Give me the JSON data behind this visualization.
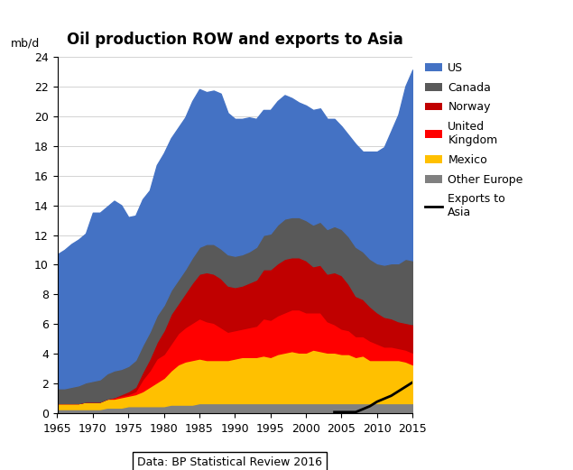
{
  "title": "Oil production ROW and exports to Asia",
  "ylabel": "mb/d",
  "source": "Data: BP Statistical Review 2016",
  "years": [
    1965,
    1966,
    1967,
    1968,
    1969,
    1970,
    1971,
    1972,
    1973,
    1974,
    1975,
    1976,
    1977,
    1978,
    1979,
    1980,
    1981,
    1982,
    1983,
    1984,
    1985,
    1986,
    1987,
    1988,
    1989,
    1990,
    1991,
    1992,
    1993,
    1994,
    1995,
    1996,
    1997,
    1998,
    1999,
    2000,
    2001,
    2002,
    2003,
    2004,
    2005,
    2006,
    2007,
    2008,
    2009,
    2010,
    2011,
    2012,
    2013,
    2014,
    2015
  ],
  "other_europe": [
    0.3,
    0.3,
    0.3,
    0.3,
    0.3,
    0.3,
    0.3,
    0.4,
    0.4,
    0.4,
    0.5,
    0.5,
    0.5,
    0.5,
    0.5,
    0.5,
    0.6,
    0.6,
    0.6,
    0.6,
    0.7,
    0.7,
    0.7,
    0.7,
    0.7,
    0.7,
    0.7,
    0.7,
    0.7,
    0.7,
    0.7,
    0.7,
    0.7,
    0.7,
    0.7,
    0.7,
    0.7,
    0.7,
    0.7,
    0.7,
    0.7,
    0.7,
    0.7,
    0.7,
    0.7,
    0.7,
    0.7,
    0.7,
    0.7,
    0.7,
    0.7
  ],
  "mexico": [
    0.4,
    0.4,
    0.4,
    0.4,
    0.5,
    0.5,
    0.5,
    0.6,
    0.6,
    0.7,
    0.7,
    0.8,
    1.0,
    1.3,
    1.6,
    1.9,
    2.3,
    2.7,
    2.9,
    3.0,
    3.0,
    2.9,
    2.9,
    2.9,
    2.9,
    3.0,
    3.1,
    3.1,
    3.1,
    3.2,
    3.1,
    3.3,
    3.4,
    3.5,
    3.4,
    3.4,
    3.6,
    3.5,
    3.4,
    3.4,
    3.3,
    3.3,
    3.1,
    3.2,
    2.9,
    2.9,
    2.9,
    2.9,
    2.9,
    2.8,
    2.6
  ],
  "uk": [
    0.0,
    0.0,
    0.0,
    0.0,
    0.0,
    0.0,
    0.0,
    0.0,
    0.1,
    0.1,
    0.1,
    0.2,
    0.8,
    1.1,
    1.6,
    1.6,
    1.8,
    2.1,
    2.3,
    2.5,
    2.7,
    2.6,
    2.5,
    2.2,
    1.9,
    1.9,
    1.9,
    2.0,
    2.1,
    2.5,
    2.5,
    2.6,
    2.7,
    2.8,
    2.9,
    2.7,
    2.5,
    2.6,
    2.1,
    1.9,
    1.7,
    1.6,
    1.4,
    1.3,
    1.3,
    1.1,
    0.9,
    0.9,
    0.8,
    0.8,
    0.8
  ],
  "norway": [
    0.0,
    0.0,
    0.0,
    0.0,
    0.0,
    0.0,
    0.0,
    0.0,
    0.0,
    0.1,
    0.2,
    0.3,
    0.5,
    0.8,
    1.1,
    1.6,
    2.0,
    2.0,
    2.3,
    2.7,
    3.0,
    3.3,
    3.3,
    3.3,
    3.1,
    2.9,
    2.9,
    3.0,
    3.1,
    3.3,
    3.4,
    3.5,
    3.6,
    3.5,
    3.5,
    3.5,
    3.1,
    3.2,
    3.2,
    3.5,
    3.6,
    3.1,
    2.7,
    2.5,
    2.3,
    2.1,
    2.0,
    1.9,
    1.8,
    1.8,
    1.9
  ],
  "canada": [
    1.0,
    1.0,
    1.1,
    1.2,
    1.3,
    1.4,
    1.5,
    1.7,
    1.8,
    1.7,
    1.7,
    1.8,
    1.8,
    1.8,
    1.8,
    1.7,
    1.6,
    1.6,
    1.6,
    1.7,
    1.8,
    1.9,
    2.0,
    2.0,
    2.1,
    2.1,
    2.1,
    2.1,
    2.2,
    2.3,
    2.4,
    2.6,
    2.7,
    2.7,
    2.7,
    2.7,
    2.8,
    2.9,
    3.0,
    3.1,
    3.1,
    3.2,
    3.3,
    3.2,
    3.2,
    3.3,
    3.5,
    3.7,
    3.9,
    4.3,
    4.3
  ],
  "us": [
    9.0,
    9.3,
    9.6,
    9.8,
    10.0,
    11.3,
    11.2,
    11.2,
    11.4,
    11.0,
    10.0,
    9.7,
    9.8,
    9.5,
    10.1,
    10.2,
    10.2,
    10.2,
    10.2,
    10.5,
    10.6,
    10.2,
    10.3,
    10.4,
    9.5,
    9.2,
    9.1,
    9.0,
    8.6,
    8.4,
    8.3,
    8.3,
    8.3,
    8.0,
    7.7,
    7.7,
    7.7,
    7.6,
    7.4,
    7.2,
    6.9,
    6.8,
    6.9,
    6.7,
    7.2,
    7.5,
    7.9,
    8.9,
    10.0,
    11.6,
    12.8
  ],
  "exports_to_asia": [
    null,
    null,
    null,
    null,
    null,
    null,
    null,
    null,
    null,
    null,
    null,
    null,
    null,
    null,
    null,
    null,
    null,
    null,
    null,
    null,
    null,
    null,
    null,
    null,
    null,
    null,
    null,
    null,
    null,
    null,
    null,
    null,
    null,
    null,
    null,
    null,
    null,
    null,
    null,
    0.1,
    0.1,
    0.1,
    0.1,
    0.3,
    0.5,
    0.8,
    1.0,
    1.2,
    1.5,
    1.8,
    2.1
  ],
  "colors": {
    "other_europe": "#808080",
    "mexico": "#FFC000",
    "uk": "#FF0000",
    "norway": "#C00000",
    "canada": "#595959",
    "us": "#4472C4",
    "exports_to_asia": "#000000"
  },
  "ylim": [
    0,
    24
  ],
  "yticks": [
    0,
    2,
    4,
    6,
    8,
    10,
    12,
    14,
    16,
    18,
    20,
    22,
    24
  ],
  "xlim": [
    1965,
    2015
  ],
  "xticks": [
    1965,
    1970,
    1975,
    1980,
    1985,
    1990,
    1995,
    2000,
    2005,
    2010,
    2015
  ]
}
